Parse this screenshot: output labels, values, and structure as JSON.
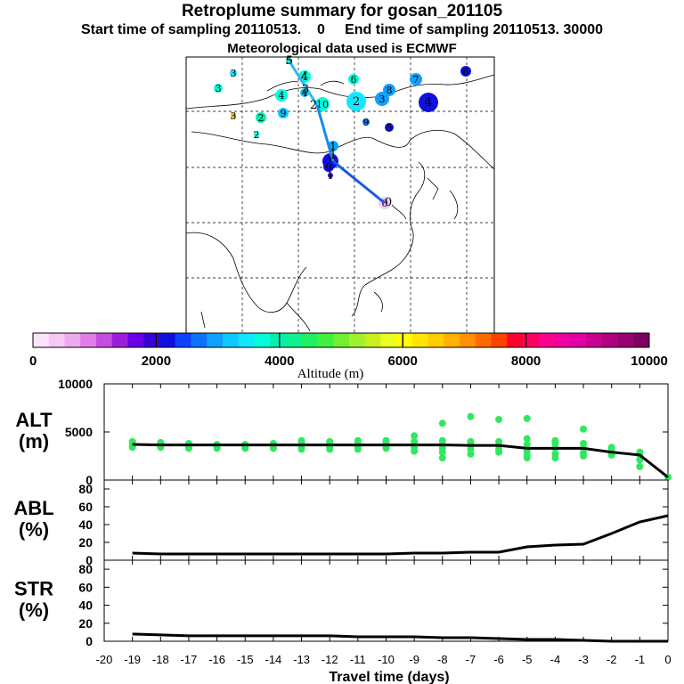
{
  "header": {
    "title": "Retroplume summary for gosan_201105",
    "subtitle": "Start time of sampling 20110513.    0     End time of sampling 20110513. 30000",
    "met_line": "Meteorological data used is ECMWF"
  },
  "colorbar": {
    "label": "Altitude  (m)",
    "tick_labels": [
      "0",
      "2000",
      "4000",
      "6000",
      "8000",
      "10000"
    ],
    "colors": [
      "#fbe3fb",
      "#f7c8f7",
      "#eeaaf0",
      "#e07de8",
      "#c44ee0",
      "#9a1fdc",
      "#6a00e6",
      "#3a00d8",
      "#1010dc",
      "#1040ff",
      "#1070ff",
      "#10a0ff",
      "#10c8ff",
      "#10e8ff",
      "#00ffd8",
      "#00f0b0",
      "#10f090",
      "#20f060",
      "#40f040",
      "#70f030",
      "#a0f030",
      "#c8f020",
      "#e8ff20",
      "#ffff00",
      "#ffe600",
      "#ffcc00",
      "#ffb000",
      "#ff9000",
      "#ff6a00",
      "#ff4000",
      "#ff0030",
      "#ff0060",
      "#ff0090",
      "#f000a0",
      "#e000a8",
      "#c80090",
      "#b00080",
      "#980070",
      "#800060"
    ]
  },
  "map": {
    "receptor_label": "0",
    "trajectory_labels": [
      "0",
      "1",
      "2",
      "3",
      "4",
      "5"
    ],
    "cluster_labels": [
      {
        "label": "3",
        "value": 3500
      },
      {
        "label": "3",
        "value": 3800
      },
      {
        "label": "3",
        "value": 6800
      },
      {
        "label": "2",
        "value": 4000
      },
      {
        "label": "2",
        "value": 3600
      },
      {
        "label": "4",
        "value": 3700
      },
      {
        "label": "4",
        "value": 3600
      },
      {
        "label": "4",
        "value": 3300
      },
      {
        "label": "5",
        "value": 3600
      },
      {
        "label": "6",
        "value": 3700
      },
      {
        "label": "7",
        "value": 3000
      },
      {
        "label": "8",
        "value": 3000
      },
      {
        "label": "9",
        "value": 2800
      },
      {
        "label": "10",
        "value": 3800
      },
      {
        "label": "2",
        "value": 3400
      },
      {
        "label": "3",
        "value": 2900
      },
      {
        "label": "4",
        "value": 2200
      },
      {
        "label": "6",
        "value": 2100
      },
      {
        "label": "9",
        "value": 3200
      },
      {
        "label": "5",
        "value": 2300
      },
      {
        "label": "1",
        "value": 3000
      },
      {
        "label": "1",
        "value": 2200
      },
      {
        "label": "0",
        "value": 2200
      },
      {
        "label": "1",
        "value": 1800
      },
      {
        "label": "0",
        "value": 300
      }
    ]
  },
  "chart_data": [
    {
      "type": "line",
      "panel": "ALT",
      "ylabel": "ALT\n(m)",
      "ylabel_lines": [
        "ALT",
        "(m)"
      ],
      "xlim": [
        -20,
        0
      ],
      "ylim": [
        0,
        10000
      ],
      "y_ticks": [
        "0",
        "5000",
        "10000"
      ],
      "x": [
        -19,
        -18,
        -17,
        -16,
        -15,
        -14,
        -13,
        -12,
        -11,
        -10,
        -9,
        -8,
        -7,
        -6,
        -5,
        -4,
        -3,
        -2,
        -1,
        0
      ],
      "series": [
        {
          "name": "mean altitude",
          "values": [
            3700,
            3650,
            3650,
            3650,
            3650,
            3650,
            3650,
            3650,
            3650,
            3650,
            3650,
            3650,
            3600,
            3600,
            3300,
            3300,
            3300,
            2900,
            2600,
            300
          ]
        }
      ],
      "scatter_points": [
        {
          "x": -19,
          "y": 3700
        },
        {
          "x": -19,
          "y": 4000
        },
        {
          "x": -19,
          "y": 3400
        },
        {
          "x": -18,
          "y": 3600
        },
        {
          "x": -18,
          "y": 3900
        },
        {
          "x": -18,
          "y": 3400
        },
        {
          "x": -17,
          "y": 3500
        },
        {
          "x": -17,
          "y": 3800
        },
        {
          "x": -17,
          "y": 3300
        },
        {
          "x": -16,
          "y": 3500
        },
        {
          "x": -16,
          "y": 3700
        },
        {
          "x": -16,
          "y": 3300
        },
        {
          "x": -15,
          "y": 3500
        },
        {
          "x": -15,
          "y": 3700
        },
        {
          "x": -15,
          "y": 3300
        },
        {
          "x": -14,
          "y": 3600
        },
        {
          "x": -14,
          "y": 3800
        },
        {
          "x": -14,
          "y": 3300
        },
        {
          "x": -13,
          "y": 3500
        },
        {
          "x": -13,
          "y": 3900
        },
        {
          "x": -13,
          "y": 3200
        },
        {
          "x": -13,
          "y": 4100
        },
        {
          "x": -12,
          "y": 3400
        },
        {
          "x": -12,
          "y": 3700
        },
        {
          "x": -12,
          "y": 4000
        },
        {
          "x": -12,
          "y": 3200
        },
        {
          "x": -11,
          "y": 3500
        },
        {
          "x": -11,
          "y": 3800
        },
        {
          "x": -11,
          "y": 4100
        },
        {
          "x": -11,
          "y": 3200
        },
        {
          "x": -10,
          "y": 3500
        },
        {
          "x": -10,
          "y": 3800
        },
        {
          "x": -10,
          "y": 4100
        },
        {
          "x": -10,
          "y": 3300
        },
        {
          "x": -9,
          "y": 3400
        },
        {
          "x": -9,
          "y": 3700
        },
        {
          "x": -9,
          "y": 4000
        },
        {
          "x": -9,
          "y": 4600
        },
        {
          "x": -9,
          "y": 3000
        },
        {
          "x": -8,
          "y": 3300
        },
        {
          "x": -8,
          "y": 3700
        },
        {
          "x": -8,
          "y": 4100
        },
        {
          "x": -8,
          "y": 5900
        },
        {
          "x": -8,
          "y": 2900
        },
        {
          "x": -8,
          "y": 2300
        },
        {
          "x": -7,
          "y": 3200
        },
        {
          "x": -7,
          "y": 3600
        },
        {
          "x": -7,
          "y": 4000
        },
        {
          "x": -7,
          "y": 6600
        },
        {
          "x": -7,
          "y": 2700
        },
        {
          "x": -6,
          "y": 3200
        },
        {
          "x": -6,
          "y": 3600
        },
        {
          "x": -6,
          "y": 4000
        },
        {
          "x": -6,
          "y": 6300
        },
        {
          "x": -6,
          "y": 2900
        },
        {
          "x": -5,
          "y": 2600
        },
        {
          "x": -5,
          "y": 3000
        },
        {
          "x": -5,
          "y": 3700
        },
        {
          "x": -5,
          "y": 4300
        },
        {
          "x": -5,
          "y": 6400
        },
        {
          "x": -5,
          "y": 2300
        },
        {
          "x": -4,
          "y": 2300
        },
        {
          "x": -4,
          "y": 2700
        },
        {
          "x": -4,
          "y": 3300
        },
        {
          "x": -4,
          "y": 3800
        },
        {
          "x": -4,
          "y": 4100
        },
        {
          "x": -3,
          "y": 2500
        },
        {
          "x": -3,
          "y": 2800
        },
        {
          "x": -3,
          "y": 3300
        },
        {
          "x": -3,
          "y": 3800
        },
        {
          "x": -3,
          "y": 5300
        },
        {
          "x": -2,
          "y": 2600
        },
        {
          "x": -2,
          "y": 2900
        },
        {
          "x": -2,
          "y": 3200
        },
        {
          "x": -2,
          "y": 3400
        },
        {
          "x": -1,
          "y": 1400
        },
        {
          "x": -1,
          "y": 2100
        },
        {
          "x": -1,
          "y": 2600
        },
        {
          "x": -1,
          "y": 2900
        },
        {
          "x": 0,
          "y": 300
        }
      ]
    },
    {
      "type": "line",
      "panel": "ABL",
      "ylabel": "ABL\n(%)",
      "ylabel_lines": [
        "ABL",
        "(%)"
      ],
      "xlim": [
        -20,
        0
      ],
      "ylim": [
        0,
        90
      ],
      "y_ticks": [
        "0",
        "20",
        "40",
        "60",
        "80"
      ],
      "x": [
        -19,
        -18,
        -17,
        -16,
        -15,
        -14,
        -13,
        -12,
        -11,
        -10,
        -9,
        -8,
        -7,
        -6,
        -5,
        -4,
        -3,
        -2,
        -1,
        0
      ],
      "series": [
        {
          "name": "ABL fraction",
          "values": [
            8,
            7,
            7,
            7,
            7,
            7,
            7,
            7,
            7,
            7,
            8,
            8,
            9,
            9,
            15,
            17,
            18,
            30,
            43,
            50
          ]
        }
      ]
    },
    {
      "type": "line",
      "panel": "STR",
      "ylabel": "STR\n(%)",
      "ylabel_lines": [
        "STR",
        "(%)"
      ],
      "xlim": [
        -20,
        0
      ],
      "ylim": [
        0,
        90
      ],
      "y_ticks": [
        "0",
        "20",
        "40",
        "60",
        "80"
      ],
      "xlabel": "Travel time (days)",
      "x_ticks": [
        "-20",
        "-19",
        "-18",
        "-17",
        "-16",
        "-15",
        "-14",
        "-13",
        "-12",
        "-11",
        "-10",
        "-9",
        "-8",
        "-7",
        "-6",
        "-5",
        "-4",
        "-3",
        "-2",
        "-1",
        "0"
      ],
      "x": [
        -19,
        -18,
        -17,
        -16,
        -15,
        -14,
        -13,
        -12,
        -11,
        -10,
        -9,
        -8,
        -7,
        -6,
        -5,
        -4,
        -3,
        -2,
        -1,
        0
      ],
      "series": [
        {
          "name": "stratospheric fraction",
          "values": [
            8,
            7,
            6,
            6,
            6,
            6,
            6,
            6,
            5,
            5,
            5,
            4,
            4,
            3,
            2,
            2,
            1,
            0,
            0,
            0
          ]
        }
      ]
    }
  ]
}
